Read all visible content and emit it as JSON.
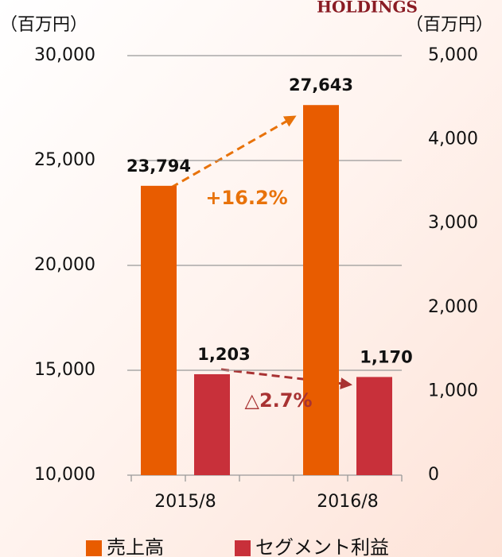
{
  "chart_data": {
    "type": "bar",
    "watermark": "HOLDINGS",
    "y_axis_label": "（百万円）",
    "y2_axis_label": "（百万円）",
    "categories": [
      "2015/8",
      "2016/8"
    ],
    "series": [
      {
        "name": "売上高",
        "color": "#e85c00",
        "axis": "y",
        "values": [
          23794,
          27643
        ],
        "value_labels": [
          "23,794",
          "27,643"
        ]
      },
      {
        "name": "セグメント利益",
        "color": "#c8303a",
        "axis": "y2",
        "values": [
          1203,
          1170
        ],
        "value_labels": [
          "1,203",
          "1,170"
        ]
      }
    ],
    "annotations": [
      {
        "text": "+16.2%",
        "color": "#e8720a"
      },
      {
        "text": "△2.7%",
        "color": "#a83232"
      }
    ],
    "ylim": [
      10000,
      30000
    ],
    "yticks": [
      {
        "value": 10000,
        "label": "10,000"
      },
      {
        "value": 15000,
        "label": "15,000"
      },
      {
        "value": 20000,
        "label": "20,000"
      },
      {
        "value": 25000,
        "label": "25,000"
      },
      {
        "value": 30000,
        "label": "30,000"
      }
    ],
    "y2lim": [
      0,
      5000
    ],
    "y2ticks": [
      0,
      {
        "value": 1000,
        "label": "1,000"
      },
      {
        "value": 2000,
        "label": "2,000"
      },
      {
        "value": 3000,
        "label": "3,000"
      },
      {
        "value": 4000,
        "label": "4,000"
      },
      {
        "value": 5000,
        "label": "5,000"
      }
    ],
    "grid": true,
    "legend": "bottom"
  }
}
